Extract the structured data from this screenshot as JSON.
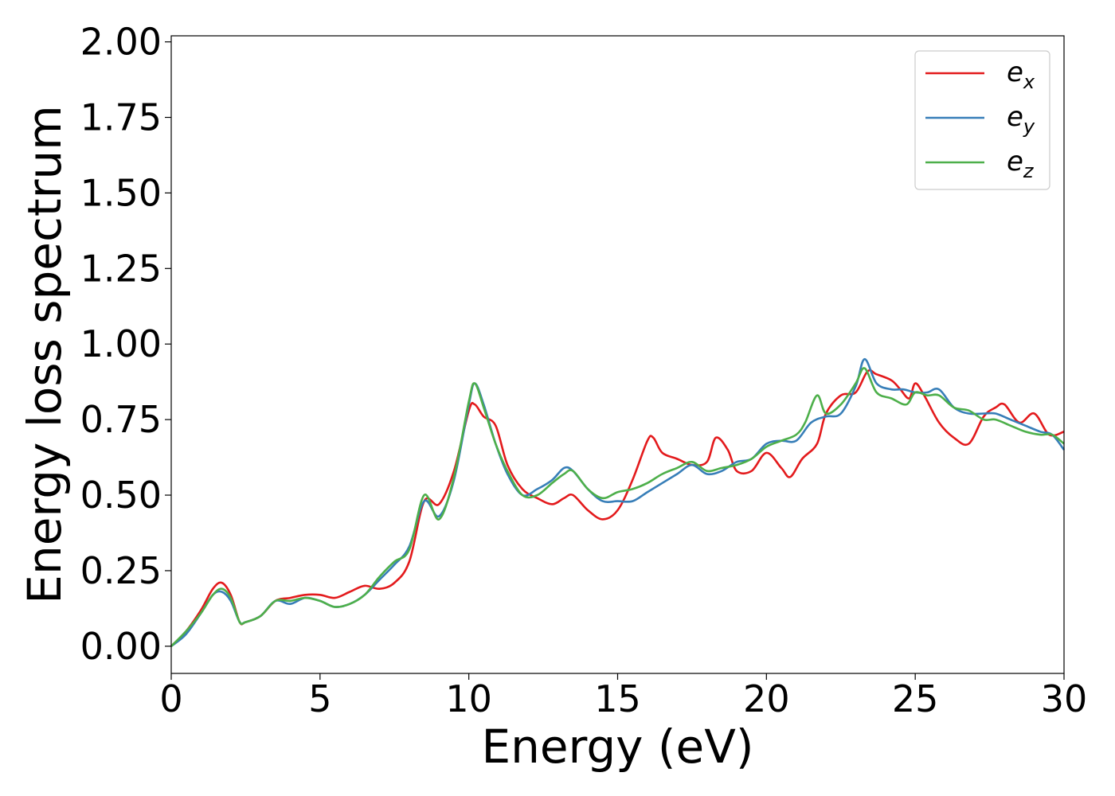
{
  "chart_data": {
    "type": "line",
    "title": "",
    "xlabel": "Energy (eV)",
    "ylabel": "Energy loss spectrum",
    "xlim": [
      0,
      30
    ],
    "ylim": [
      -0.09,
      2.02
    ],
    "x_ticks": [
      "0",
      "5",
      "10",
      "15",
      "20",
      "25",
      "30"
    ],
    "y_ticks": [
      "0.00",
      "0.25",
      "0.50",
      "0.75",
      "1.00",
      "1.25",
      "1.50",
      "1.75",
      "2.00"
    ],
    "grid": false,
    "legend_position": "top-right",
    "series": [
      {
        "name": "e_x",
        "label_base": "e",
        "label_sub": "x",
        "color": "#e31a1c",
        "x": [
          0,
          0.5,
          1,
          1.4,
          1.7,
          2,
          2.3,
          2.5,
          3,
          3.5,
          4,
          4.5,
          5,
          5.5,
          6,
          6.5,
          7,
          7.5,
          8,
          8.5,
          9,
          9.5,
          10,
          10.2,
          10.5,
          10.9,
          11.3,
          11.8,
          12.3,
          12.8,
          13.2,
          13.5,
          14,
          14.5,
          15,
          15.5,
          16,
          16.2,
          16.5,
          17,
          17.5,
          18,
          18.3,
          18.7,
          19,
          19.5,
          20,
          20.5,
          20.8,
          21.2,
          21.7,
          22,
          22.5,
          23,
          23.4,
          23.7,
          24.2,
          24.5,
          24.8,
          25,
          25.3,
          25.8,
          26.3,
          26.8,
          27.3,
          27.7,
          28,
          28.5,
          29,
          29.5,
          30
        ],
        "y": [
          0,
          0.05,
          0.12,
          0.19,
          0.21,
          0.17,
          0.08,
          0.08,
          0.1,
          0.15,
          0.16,
          0.17,
          0.17,
          0.16,
          0.18,
          0.2,
          0.19,
          0.21,
          0.28,
          0.48,
          0.47,
          0.58,
          0.78,
          0.8,
          0.76,
          0.73,
          0.6,
          0.52,
          0.49,
          0.47,
          0.49,
          0.5,
          0.45,
          0.42,
          0.45,
          0.55,
          0.68,
          0.69,
          0.64,
          0.62,
          0.6,
          0.61,
          0.69,
          0.65,
          0.58,
          0.58,
          0.64,
          0.59,
          0.56,
          0.62,
          0.67,
          0.77,
          0.83,
          0.84,
          0.91,
          0.9,
          0.88,
          0.85,
          0.82,
          0.87,
          0.83,
          0.74,
          0.69,
          0.67,
          0.76,
          0.79,
          0.8,
          0.74,
          0.77,
          0.7,
          0.71
        ]
      },
      {
        "name": "e_y",
        "label_base": "e",
        "label_sub": "y",
        "color": "#377eb8",
        "x": [
          0,
          0.5,
          1,
          1.4,
          1.7,
          2,
          2.3,
          2.5,
          3,
          3.5,
          4,
          4.5,
          5,
          5.5,
          6,
          6.5,
          7,
          7.5,
          8,
          8.5,
          9,
          9.5,
          10,
          10.2,
          10.5,
          10.9,
          11.3,
          11.8,
          12.3,
          12.8,
          13.2,
          13.5,
          14,
          14.5,
          15,
          15.5,
          16,
          16.5,
          17,
          17.5,
          18,
          18.5,
          19,
          19.5,
          20,
          20.5,
          21,
          21.5,
          22,
          22.5,
          23,
          23.3,
          23.7,
          24.2,
          24.6,
          25,
          25.4,
          25.8,
          26.3,
          26.8,
          27.3,
          27.7,
          28.2,
          28.7,
          29.2,
          29.6,
          30
        ],
        "y": [
          0,
          0.04,
          0.11,
          0.17,
          0.18,
          0.15,
          0.08,
          0.08,
          0.1,
          0.15,
          0.14,
          0.16,
          0.15,
          0.13,
          0.14,
          0.17,
          0.22,
          0.27,
          0.33,
          0.48,
          0.43,
          0.55,
          0.8,
          0.87,
          0.8,
          0.67,
          0.57,
          0.5,
          0.52,
          0.55,
          0.59,
          0.58,
          0.52,
          0.48,
          0.48,
          0.48,
          0.51,
          0.54,
          0.57,
          0.6,
          0.57,
          0.58,
          0.61,
          0.62,
          0.67,
          0.68,
          0.68,
          0.74,
          0.76,
          0.77,
          0.86,
          0.95,
          0.87,
          0.85,
          0.85,
          0.84,
          0.84,
          0.85,
          0.79,
          0.77,
          0.77,
          0.77,
          0.75,
          0.73,
          0.71,
          0.7,
          0.65
        ]
      },
      {
        "name": "e_z",
        "label_base": "e",
        "label_sub": "z",
        "color": "#4daf4a",
        "x": [
          0,
          0.5,
          1,
          1.4,
          1.7,
          2,
          2.3,
          2.5,
          3,
          3.5,
          4,
          4.5,
          5,
          5.5,
          6,
          6.5,
          7,
          7.5,
          8,
          8.5,
          9,
          9.5,
          10,
          10.2,
          10.5,
          10.9,
          11.3,
          11.8,
          12.3,
          12.8,
          13.2,
          13.5,
          14,
          14.5,
          15,
          15.5,
          16,
          16.5,
          17,
          17.5,
          18,
          18.5,
          19,
          19.5,
          20,
          20.5,
          21,
          21.3,
          21.7,
          22,
          22.5,
          23,
          23.3,
          23.7,
          24.2,
          24.7,
          25,
          25.4,
          25.8,
          26.3,
          26.8,
          27.3,
          27.7,
          28.2,
          28.7,
          29.2,
          29.6,
          30
        ],
        "y": [
          0,
          0.05,
          0.11,
          0.17,
          0.19,
          0.16,
          0.08,
          0.08,
          0.1,
          0.15,
          0.15,
          0.16,
          0.15,
          0.13,
          0.14,
          0.17,
          0.23,
          0.28,
          0.32,
          0.5,
          0.42,
          0.56,
          0.81,
          0.87,
          0.79,
          0.67,
          0.58,
          0.5,
          0.5,
          0.54,
          0.57,
          0.58,
          0.52,
          0.49,
          0.51,
          0.52,
          0.54,
          0.57,
          0.59,
          0.61,
          0.58,
          0.59,
          0.6,
          0.62,
          0.66,
          0.68,
          0.7,
          0.74,
          0.83,
          0.77,
          0.8,
          0.87,
          0.92,
          0.84,
          0.82,
          0.8,
          0.84,
          0.83,
          0.83,
          0.79,
          0.78,
          0.75,
          0.75,
          0.73,
          0.71,
          0.7,
          0.7,
          0.67
        ]
      }
    ]
  }
}
